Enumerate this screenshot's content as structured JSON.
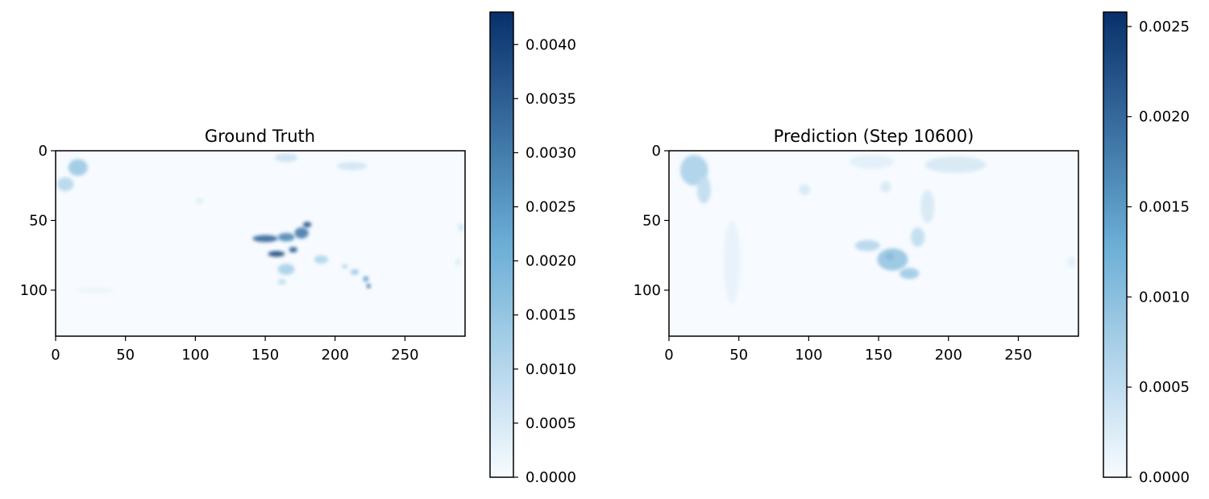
{
  "colors": {
    "cmap_low": "#f7fbff",
    "cmap_mid": "#6baed6",
    "cmap_high": "#08306b",
    "frame": "#000000",
    "background": "#ffffff"
  },
  "chart_data": [
    {
      "type": "heatmap",
      "title": "Ground Truth",
      "colormap": "Blues",
      "xlim": [
        0,
        293
      ],
      "ylim": [
        133,
        0
      ],
      "x_ticks": [
        0,
        50,
        100,
        150,
        200,
        250
      ],
      "x_tick_labels": [
        "0",
        "50",
        "100",
        "150",
        "200",
        "250"
      ],
      "y_ticks": [
        0,
        50,
        100
      ],
      "y_tick_labels": [
        "0",
        "50",
        "100"
      ],
      "colorbar": {
        "range": [
          0.0,
          0.0043
        ],
        "ticks": [
          0.0,
          0.0005,
          0.001,
          0.0015,
          0.002,
          0.0025,
          0.003,
          0.0035,
          0.004
        ],
        "tick_labels": [
          "0.0000",
          "0.0005",
          "0.0010",
          "0.0015",
          "0.0020",
          "0.0025",
          "0.0030",
          "0.0035",
          "0.0040"
        ]
      },
      "features": [
        {
          "x": 16,
          "y": 12,
          "sx": 7,
          "sy": 6,
          "value": 0.0014
        },
        {
          "x": 7,
          "y": 24,
          "sx": 6,
          "sy": 5,
          "value": 0.001
        },
        {
          "x": 150,
          "y": 63,
          "sx": 9,
          "sy": 2.5,
          "value": 0.0034
        },
        {
          "x": 165,
          "y": 62,
          "sx": 6,
          "sy": 3,
          "value": 0.0028
        },
        {
          "x": 176,
          "y": 59,
          "sx": 5,
          "sy": 4,
          "value": 0.003
        },
        {
          "x": 180,
          "y": 53,
          "sx": 3,
          "sy": 2,
          "value": 0.0038
        },
        {
          "x": 158,
          "y": 74,
          "sx": 6,
          "sy": 2,
          "value": 0.004
        },
        {
          "x": 170,
          "y": 71,
          "sx": 3,
          "sy": 2,
          "value": 0.0036
        },
        {
          "x": 165,
          "y": 85,
          "sx": 6,
          "sy": 4,
          "value": 0.0012
        },
        {
          "x": 162,
          "y": 94,
          "sx": 3,
          "sy": 2,
          "value": 0.0009
        },
        {
          "x": 190,
          "y": 78,
          "sx": 5,
          "sy": 3,
          "value": 0.0011
        },
        {
          "x": 214,
          "y": 87,
          "sx": 3,
          "sy": 2,
          "value": 0.0014
        },
        {
          "x": 222,
          "y": 92,
          "sx": 2,
          "sy": 2,
          "value": 0.0024
        },
        {
          "x": 224,
          "y": 97,
          "sx": 1.5,
          "sy": 1.5,
          "value": 0.0034
        },
        {
          "x": 207,
          "y": 83,
          "sx": 2,
          "sy": 1.5,
          "value": 0.0012
        },
        {
          "x": 165,
          "y": 5,
          "sx": 8,
          "sy": 3,
          "value": 0.0007
        },
        {
          "x": 212,
          "y": 11,
          "sx": 11,
          "sy": 3,
          "value": 0.0006
        },
        {
          "x": 103,
          "y": 36,
          "sx": 3,
          "sy": 2,
          "value": 0.0004
        },
        {
          "x": 290,
          "y": 55,
          "sx": 2,
          "sy": 3,
          "value": 0.0006
        },
        {
          "x": 288,
          "y": 80,
          "sx": 2,
          "sy": 3,
          "value": 0.0004
        },
        {
          "x": 28,
          "y": 100,
          "sx": 14,
          "sy": 2,
          "value": 0.0002
        }
      ]
    },
    {
      "type": "heatmap",
      "title": "Prediction (Step 10600)",
      "colormap": "Blues",
      "xlim": [
        0,
        293
      ],
      "ylim": [
        133,
        0
      ],
      "x_ticks": [
        0,
        50,
        100,
        150,
        200,
        250
      ],
      "x_tick_labels": [
        "0",
        "50",
        "100",
        "150",
        "200",
        "250"
      ],
      "y_ticks": [
        0,
        50,
        100
      ],
      "y_tick_labels": [
        "0",
        "50",
        "100"
      ],
      "colorbar": {
        "range": [
          0.0,
          0.00258
        ],
        "ticks": [
          0.0,
          0.0005,
          0.001,
          0.0015,
          0.002,
          0.0025
        ],
        "tick_labels": [
          "0.0000",
          "0.0005",
          "0.0010",
          "0.0015",
          "0.0020",
          "0.0025"
        ]
      },
      "features": [
        {
          "x": 18,
          "y": 14,
          "sx": 10,
          "sy": 11,
          "value": 0.0007
        },
        {
          "x": 25,
          "y": 28,
          "sx": 5,
          "sy": 10,
          "value": 0.0005
        },
        {
          "x": 158,
          "y": 76,
          "sx": 3,
          "sy": 2.5,
          "value": 0.0024
        },
        {
          "x": 160,
          "y": 78,
          "sx": 11,
          "sy": 8,
          "value": 0.0009
        },
        {
          "x": 142,
          "y": 68,
          "sx": 9,
          "sy": 4,
          "value": 0.0006
        },
        {
          "x": 172,
          "y": 88,
          "sx": 7,
          "sy": 4,
          "value": 0.0008
        },
        {
          "x": 178,
          "y": 62,
          "sx": 5,
          "sy": 7,
          "value": 0.0005
        },
        {
          "x": 185,
          "y": 40,
          "sx": 5,
          "sy": 12,
          "value": 0.0003
        },
        {
          "x": 97,
          "y": 28,
          "sx": 4,
          "sy": 4,
          "value": 0.0003
        },
        {
          "x": 155,
          "y": 26,
          "sx": 4,
          "sy": 4,
          "value": 0.0003
        },
        {
          "x": 205,
          "y": 10,
          "sx": 22,
          "sy": 6,
          "value": 0.0003
        },
        {
          "x": 145,
          "y": 8,
          "sx": 16,
          "sy": 5,
          "value": 0.0002
        },
        {
          "x": 288,
          "y": 80,
          "sx": 3,
          "sy": 4,
          "value": 0.0002
        },
        {
          "x": 45,
          "y": 80,
          "sx": 6,
          "sy": 30,
          "value": 0.00015
        }
      ]
    }
  ]
}
